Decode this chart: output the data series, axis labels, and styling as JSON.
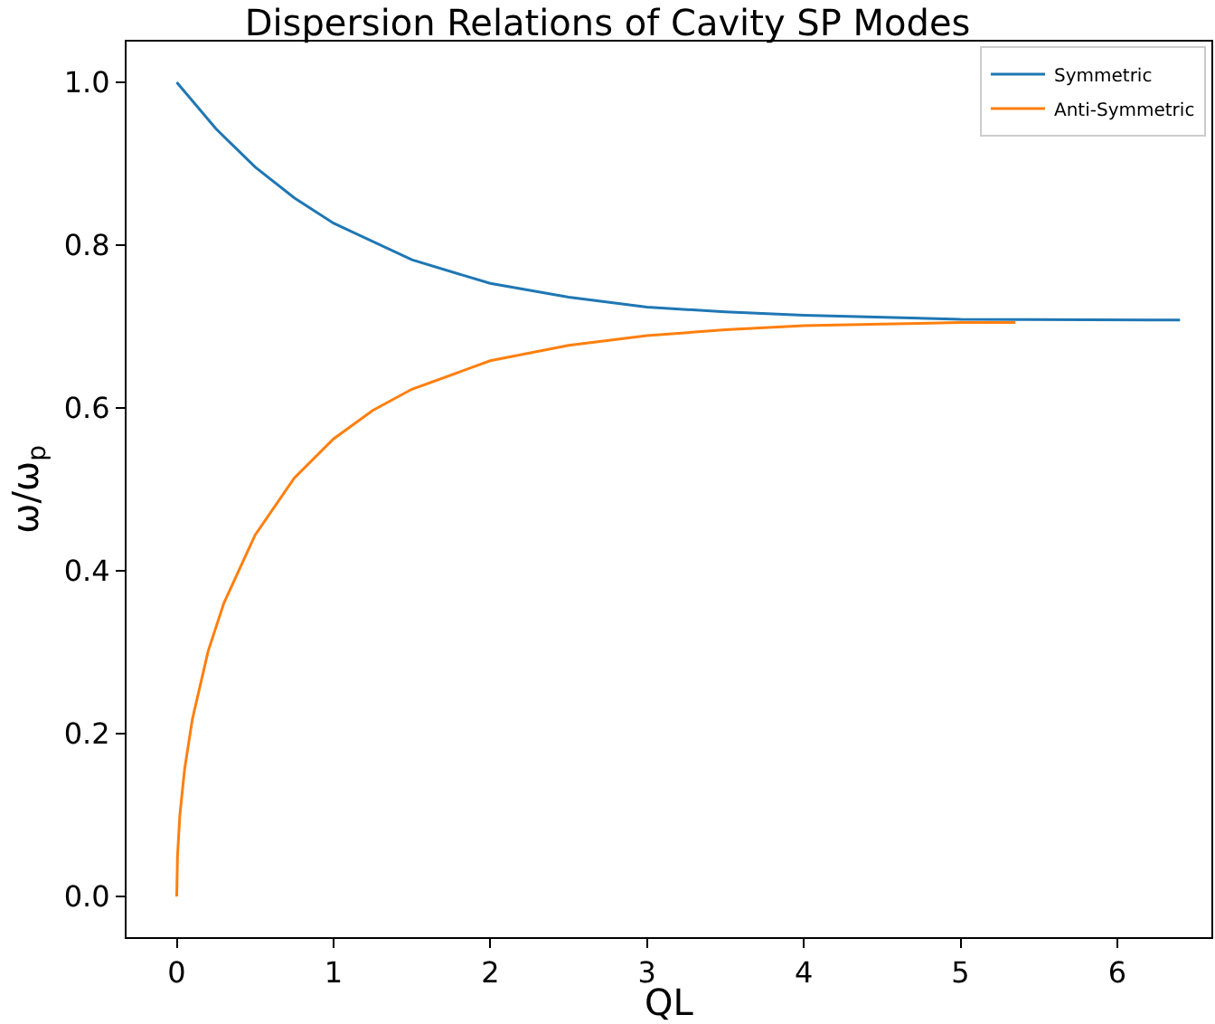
{
  "chart_data": {
    "type": "line",
    "title": "Dispersion Relations of Cavity SP Modes",
    "xlabel": "QL",
    "ylabel": "ω/ω$_{p}$",
    "series": [
      {
        "name": "Symmetric",
        "color": "#1f77b4",
        "x": [
          0,
          0.25,
          0.5,
          0.75,
          1,
          1.5,
          2,
          2.5,
          3,
          3.5,
          4,
          5,
          6.4
        ],
        "values": [
          1.0,
          0.943,
          0.896,
          0.858,
          0.827,
          0.782,
          0.753,
          0.736,
          0.724,
          0.718,
          0.714,
          0.709,
          0.708
        ]
      },
      {
        "name": "Anti-Symmetric",
        "color": "#ff7f0e",
        "x": [
          0,
          0.005,
          0.02,
          0.05,
          0.1,
          0.2,
          0.3,
          0.5,
          0.75,
          1,
          1.25,
          1.5,
          2,
          2.5,
          3,
          3.5,
          4,
          4.5,
          5,
          5.35
        ],
        "values": [
          0.0,
          0.05,
          0.1,
          0.156,
          0.218,
          0.301,
          0.36,
          0.444,
          0.514,
          0.562,
          0.597,
          0.623,
          0.658,
          0.677,
          0.689,
          0.696,
          0.701,
          0.703,
          0.705,
          0.705
        ]
      }
    ],
    "xlim": [
      -0.32,
      6.6
    ],
    "xticks": [
      0,
      1,
      2,
      3,
      4,
      5,
      6
    ],
    "ylim": [
      -0.05,
      1.05
    ],
    "yticks": [
      {
        "value": 0,
        "label": "0.0"
      },
      {
        "value": 0.2,
        "label": "0.2"
      },
      {
        "value": 0.4,
        "label": "0.4"
      },
      {
        "value": 0.6,
        "label": "0.6"
      },
      {
        "value": 0.8,
        "label": "0.8"
      },
      {
        "value": 1,
        "label": "1.0"
      }
    ],
    "legend": "top right",
    "grid": false,
    "line_style": "solid",
    "marker": "none"
  }
}
